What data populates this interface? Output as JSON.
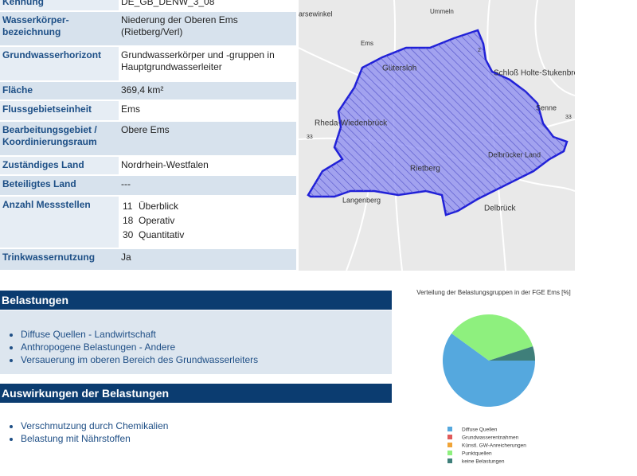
{
  "table": {
    "rows": [
      {
        "label": "Kennung",
        "value": "DE_GB_DENW_3_08"
      },
      {
        "label": "Wasserkörper-bezeichnung",
        "value": "Niederung der Oberen Ems (Rietberg/Verl)"
      },
      {
        "label": "Grundwasserhorizont",
        "value": "Grundwasserkörper und -gruppen in Hauptgrundwasserleiter"
      },
      {
        "label": "Fläche",
        "value": "369,4  km²"
      },
      {
        "label": "Flussgebietseinheit",
        "value": "Ems"
      },
      {
        "label": "Bearbeitungsgebiet / Koordinierungsraum",
        "value": "Obere Ems"
      },
      {
        "label": "Zuständiges Land",
        "value": "Nordrhein-Westfalen"
      },
      {
        "label": "Beteiligtes Land",
        "value": "---"
      },
      {
        "label": "Anzahl Messstellen",
        "counts": [
          {
            "count": 11,
            "kind": "Überblick"
          },
          {
            "count": 18,
            "kind": "Operativ"
          },
          {
            "count": 30,
            "kind": "Quantitativ"
          }
        ]
      },
      {
        "label": "Trinkwassernutzung",
        "value": "Ja"
      }
    ]
  },
  "map": {
    "labels": [
      "arsewinkel",
      "Ummeln",
      "Gütersloh",
      "Schloß Holte-Stukenbro",
      "Senne",
      "Rheda-Wiedenbrück",
      "Rietberg",
      "Delbrücker Land",
      "Langenberg",
      "Delbrück",
      "Ems",
      "2",
      "33",
      "33"
    ]
  },
  "sections": [
    {
      "title": "Belastungen",
      "items": [
        "Diffuse Quellen - Landwirtschaft",
        "Anthropogene Belastungen - Andere",
        "Versauerung im oberen Bereich des Grundwasserleiters"
      ]
    },
    {
      "title": "Auswirkungen der Belastungen",
      "items": [
        "Verschmutzung durch Chemikalien",
        "Belastung mit Nährstoffen"
      ]
    }
  ],
  "chart_data": {
    "type": "pie",
    "title": "Verteilung der Belastungsgruppen in der FGE Ems [%]",
    "categories": [
      "Diffuse Quellen",
      "Grundwasserentnahmen",
      "Künstl. GW-Anreicherungen",
      "Punktquellen",
      "keine Belastungen"
    ],
    "values": [
      60,
      0,
      0,
      35,
      5
    ],
    "colors": [
      "#55a8de",
      "#e05a5a",
      "#f0a438",
      "#8ef07e",
      "#3f7f7a"
    ]
  }
}
